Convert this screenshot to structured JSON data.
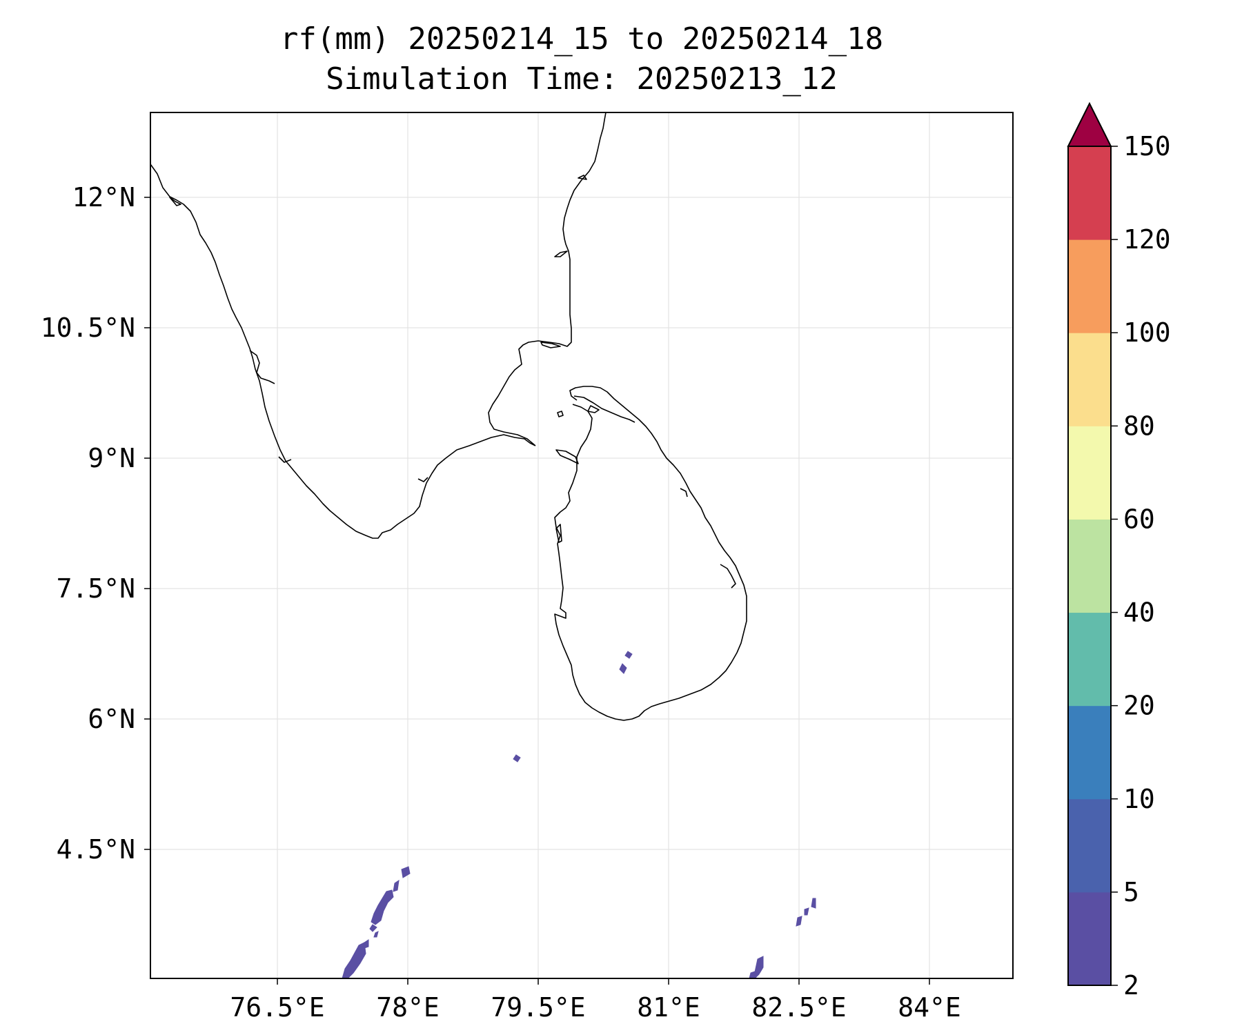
{
  "title": {
    "line1": "rf(mm) 20250214_15 to 20250214_18",
    "line2": "Simulation Time: 20250213_12"
  },
  "map": {
    "lon_ticks": [
      "76.5°E",
      "78°E",
      "79.5°E",
      "81°E",
      "82.5°E",
      "84°E"
    ],
    "lat_ticks": [
      "12°N",
      "10.5°N",
      "9°N",
      "7.5°N",
      "6°N",
      "4.5°N"
    ],
    "rain_color": "#5a4fa3",
    "coastline_color": "#000000"
  },
  "colorbar": {
    "levels": [
      "2",
      "5",
      "10",
      "20",
      "40",
      "60",
      "80",
      "100",
      "120",
      "150"
    ],
    "colors": [
      "#5a4fa3",
      "#4a62ad",
      "#3a7fbc",
      "#62bcab",
      "#bce3a1",
      "#f3f9ad",
      "#fbde8d",
      "#f79d5d",
      "#d53f50"
    ],
    "extend_color": "#9e0142"
  }
}
